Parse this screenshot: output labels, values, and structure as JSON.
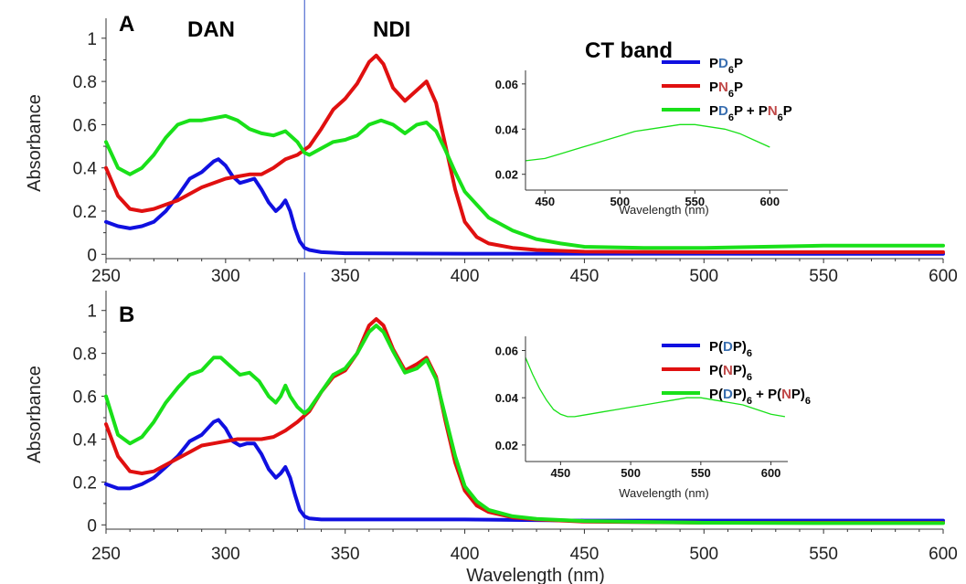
{
  "chart_data": [
    {
      "panel": "A",
      "type": "line",
      "xlabel": "",
      "ylabel": "Absorbance",
      "xlim": [
        250,
        600
      ],
      "ylim": [
        -0.02,
        1.05
      ],
      "x_ticks": [
        "250",
        "300",
        "350",
        "400",
        "450",
        "500",
        "550",
        "600"
      ],
      "y_ticks": [
        "0",
        "0.2",
        "0.4",
        "0.6",
        "0.8",
        "1"
      ],
      "region_labels": [
        "DAN",
        "NDI"
      ],
      "marker_x": 333,
      "series": [
        {
          "name_parts": [
            {
              "t": "P",
              "c": "#000000"
            },
            {
              "t": "D",
              "c": "#3a6fb0"
            },
            {
              "t": "6",
              "c": "#000000",
              "sub": true
            },
            {
              "t": "P",
              "c": "#000000"
            }
          ],
          "color": "#1010e0",
          "x": [
            250,
            255,
            260,
            265,
            270,
            275,
            280,
            285,
            290,
            295,
            297,
            300,
            303,
            306,
            309,
            312,
            315,
            318,
            321,
            323,
            325,
            327,
            329,
            331,
            333,
            335,
            340,
            350,
            400,
            450,
            500,
            550,
            600
          ],
          "y": [
            0.15,
            0.13,
            0.12,
            0.13,
            0.15,
            0.2,
            0.27,
            0.35,
            0.38,
            0.43,
            0.44,
            0.41,
            0.36,
            0.33,
            0.34,
            0.35,
            0.3,
            0.24,
            0.2,
            0.22,
            0.25,
            0.2,
            0.12,
            0.06,
            0.03,
            0.02,
            0.01,
            0.005,
            0.003,
            0.003,
            0.003,
            0.002,
            0.002
          ]
        },
        {
          "name_parts": [
            {
              "t": "P",
              "c": "#000000"
            },
            {
              "t": "N",
              "c": "#c04848"
            },
            {
              "t": "6",
              "c": "#000000",
              "sub": true
            },
            {
              "t": "P",
              "c": "#000000"
            }
          ],
          "color": "#e01010",
          "x": [
            250,
            255,
            260,
            265,
            270,
            275,
            280,
            285,
            290,
            295,
            300,
            305,
            310,
            315,
            320,
            325,
            330,
            335,
            340,
            345,
            350,
            355,
            360,
            363,
            366,
            370,
            375,
            380,
            384,
            388,
            392,
            396,
            400,
            405,
            410,
            420,
            430,
            450,
            500,
            550,
            600
          ],
          "y": [
            0.4,
            0.27,
            0.21,
            0.2,
            0.21,
            0.23,
            0.25,
            0.28,
            0.31,
            0.33,
            0.35,
            0.36,
            0.37,
            0.37,
            0.4,
            0.44,
            0.46,
            0.5,
            0.58,
            0.67,
            0.72,
            0.79,
            0.89,
            0.92,
            0.88,
            0.77,
            0.71,
            0.76,
            0.8,
            0.7,
            0.5,
            0.3,
            0.15,
            0.08,
            0.05,
            0.03,
            0.02,
            0.012,
            0.01,
            0.01,
            0.01
          ]
        },
        {
          "name_parts": [
            {
              "t": "P",
              "c": "#000000"
            },
            {
              "t": "D",
              "c": "#3a6fb0"
            },
            {
              "t": "6",
              "c": "#000000",
              "sub": true
            },
            {
              "t": "P + P",
              "c": "#000000"
            },
            {
              "t": "N",
              "c": "#c04848"
            },
            {
              "t": "6",
              "c": "#000000",
              "sub": true
            },
            {
              "t": "P",
              "c": "#000000"
            }
          ],
          "color": "#19e019",
          "x": [
            250,
            255,
            260,
            265,
            270,
            275,
            280,
            285,
            290,
            295,
            300,
            305,
            310,
            315,
            320,
            325,
            330,
            333,
            335,
            340,
            345,
            350,
            355,
            360,
            365,
            370,
            375,
            380,
            384,
            388,
            392,
            396,
            400,
            410,
            420,
            430,
            440,
            450,
            475,
            500,
            525,
            550,
            575,
            600
          ],
          "y": [
            0.52,
            0.4,
            0.37,
            0.4,
            0.46,
            0.54,
            0.6,
            0.62,
            0.62,
            0.63,
            0.64,
            0.62,
            0.58,
            0.56,
            0.55,
            0.57,
            0.52,
            0.47,
            0.46,
            0.49,
            0.52,
            0.53,
            0.55,
            0.6,
            0.62,
            0.6,
            0.56,
            0.6,
            0.61,
            0.57,
            0.48,
            0.38,
            0.29,
            0.17,
            0.11,
            0.07,
            0.05,
            0.035,
            0.03,
            0.03,
            0.035,
            0.04,
            0.04,
            0.04
          ]
        }
      ],
      "inset": {
        "title": "CT band",
        "xlabel": "Wavelength (nm)",
        "xlim": [
          437,
          612
        ],
        "ylim": [
          0.013,
          0.066
        ],
        "x_ticks": [
          "450",
          "500",
          "550",
          "600"
        ],
        "y_ticks": [
          "0.02",
          "0.04",
          "0.06"
        ],
        "series": {
          "color": "#19e019",
          "x": [
            437,
            450,
            460,
            470,
            480,
            490,
            500,
            510,
            520,
            530,
            540,
            550,
            560,
            570,
            580,
            590,
            600
          ],
          "y": [
            0.026,
            0.027,
            0.029,
            0.031,
            0.033,
            0.035,
            0.037,
            0.039,
            0.04,
            0.041,
            0.042,
            0.042,
            0.041,
            0.04,
            0.038,
            0.035,
            0.032
          ]
        }
      }
    },
    {
      "panel": "B",
      "type": "line",
      "xlabel": "Wavelength (nm)",
      "ylabel": "Absorbance",
      "xlim": [
        250,
        600
      ],
      "ylim": [
        -0.02,
        1.05
      ],
      "x_ticks": [
        "250",
        "300",
        "350",
        "400",
        "450",
        "500",
        "550",
        "600"
      ],
      "y_ticks": [
        "0",
        "0.2",
        "0.4",
        "0.6",
        "0.8",
        "1"
      ],
      "marker_x": 333,
      "series": [
        {
          "name_parts": [
            {
              "t": "P(",
              "c": "#000000"
            },
            {
              "t": "D",
              "c": "#3a6fb0"
            },
            {
              "t": "P)",
              "c": "#000000"
            },
            {
              "t": "6",
              "c": "#000000",
              "sub": true
            }
          ],
          "color": "#1010e0",
          "x": [
            250,
            255,
            260,
            265,
            270,
            275,
            280,
            285,
            290,
            295,
            297,
            300,
            303,
            306,
            309,
            312,
            315,
            318,
            321,
            323,
            325,
            327,
            329,
            331,
            333,
            335,
            340,
            350,
            370,
            400,
            450,
            500,
            550,
            600
          ],
          "y": [
            0.19,
            0.17,
            0.17,
            0.19,
            0.22,
            0.27,
            0.32,
            0.39,
            0.42,
            0.48,
            0.49,
            0.45,
            0.39,
            0.37,
            0.38,
            0.38,
            0.33,
            0.26,
            0.22,
            0.24,
            0.27,
            0.22,
            0.14,
            0.07,
            0.04,
            0.03,
            0.025,
            0.025,
            0.025,
            0.025,
            0.02,
            0.02,
            0.02,
            0.02
          ]
        },
        {
          "name_parts": [
            {
              "t": "P(",
              "c": "#000000"
            },
            {
              "t": "N",
              "c": "#c04848"
            },
            {
              "t": "P)",
              "c": "#000000"
            },
            {
              "t": "6",
              "c": "#000000",
              "sub": true
            }
          ],
          "color": "#e01010",
          "x": [
            250,
            255,
            260,
            265,
            270,
            275,
            280,
            285,
            290,
            295,
            300,
            305,
            310,
            315,
            320,
            325,
            330,
            335,
            340,
            345,
            350,
            355,
            360,
            363,
            366,
            370,
            375,
            380,
            384,
            388,
            392,
            396,
            400,
            405,
            410,
            420,
            430,
            450,
            500,
            550,
            600
          ],
          "y": [
            0.47,
            0.32,
            0.25,
            0.24,
            0.25,
            0.28,
            0.31,
            0.34,
            0.37,
            0.38,
            0.39,
            0.4,
            0.4,
            0.4,
            0.41,
            0.44,
            0.48,
            0.53,
            0.62,
            0.69,
            0.72,
            0.8,
            0.93,
            0.96,
            0.93,
            0.82,
            0.72,
            0.75,
            0.78,
            0.69,
            0.48,
            0.29,
            0.16,
            0.09,
            0.06,
            0.035,
            0.025,
            0.015,
            0.01,
            0.01,
            0.01
          ]
        },
        {
          "name_parts": [
            {
              "t": "P(",
              "c": "#000000"
            },
            {
              "t": "D",
              "c": "#3a6fb0"
            },
            {
              "t": "P)",
              "c": "#000000"
            },
            {
              "t": "6",
              "c": "#000000",
              "sub": true
            },
            {
              "t": " + P(",
              "c": "#000000"
            },
            {
              "t": "N",
              "c": "#c04848"
            },
            {
              "t": "P)",
              "c": "#000000"
            },
            {
              "t": "6",
              "c": "#000000",
              "sub": true
            }
          ],
          "color": "#19e019",
          "x": [
            250,
            255,
            260,
            265,
            270,
            275,
            280,
            285,
            290,
            295,
            298,
            302,
            306,
            310,
            314,
            318,
            321,
            323,
            325,
            327,
            330,
            333,
            335,
            340,
            345,
            350,
            355,
            360,
            363,
            366,
            370,
            375,
            380,
            384,
            388,
            392,
            396,
            400,
            405,
            410,
            420,
            430,
            450,
            500,
            550,
            600
          ],
          "y": [
            0.6,
            0.42,
            0.38,
            0.41,
            0.48,
            0.57,
            0.64,
            0.7,
            0.72,
            0.78,
            0.78,
            0.74,
            0.7,
            0.71,
            0.67,
            0.6,
            0.57,
            0.6,
            0.65,
            0.6,
            0.55,
            0.52,
            0.54,
            0.62,
            0.7,
            0.73,
            0.8,
            0.9,
            0.93,
            0.9,
            0.81,
            0.71,
            0.73,
            0.77,
            0.68,
            0.5,
            0.32,
            0.18,
            0.11,
            0.07,
            0.04,
            0.028,
            0.018,
            0.01,
            0.008,
            0.008
          ]
        }
      ],
      "inset": {
        "xlabel": "Wavelength (nm)",
        "xlim": [
          425,
          612
        ],
        "ylim": [
          0.013,
          0.066
        ],
        "x_ticks": [
          "450",
          "500",
          "550",
          "600"
        ],
        "y_ticks": [
          "0.02",
          "0.04",
          "0.06"
        ],
        "series": {
          "color": "#19e019",
          "x": [
            425,
            430,
            435,
            440,
            445,
            450,
            455,
            460,
            470,
            480,
            490,
            500,
            510,
            520,
            530,
            540,
            550,
            560,
            570,
            580,
            590,
            600,
            610
          ],
          "y": [
            0.057,
            0.05,
            0.044,
            0.039,
            0.035,
            0.033,
            0.032,
            0.032,
            0.033,
            0.034,
            0.035,
            0.036,
            0.037,
            0.038,
            0.039,
            0.04,
            0.04,
            0.039,
            0.038,
            0.037,
            0.035,
            0.033,
            0.032
          ]
        }
      }
    }
  ]
}
